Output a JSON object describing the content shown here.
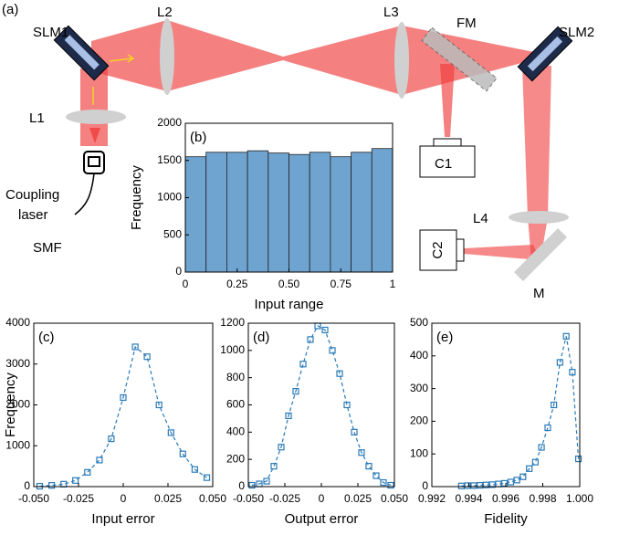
{
  "diagram": {
    "panel_label": "(a)",
    "labels": [
      "SLM1",
      "L2",
      "L3",
      "FM",
      "SLM2",
      "L1",
      "C1",
      "Coupling",
      "laser",
      "SMF",
      "L4",
      "C2",
      "M"
    ]
  },
  "chart_data": [
    {
      "type": "histogram",
      "panel_label": "(b)",
      "xlabel": "Input range",
      "ylabel": "Frequency",
      "color": "#6fa3d0",
      "bins": [
        0,
        0.1,
        0.2,
        0.3,
        0.4,
        0.5,
        0.6,
        0.7,
        0.8,
        0.9,
        1
      ],
      "values": [
        1550,
        1610,
        1610,
        1630,
        1600,
        1580,
        1610,
        1550,
        1610,
        1660
      ],
      "xlim": [
        0,
        1
      ],
      "ylim": [
        0,
        2000
      ],
      "xticks": [
        0,
        0.25,
        {
          "value": 0.5,
          "label": "0.50"
        },
        0.75,
        1
      ],
      "yticks": [
        0,
        500,
        1000,
        1500,
        2000
      ]
    },
    {
      "type": "line",
      "panel_label": "(c)",
      "xlabel": "Input error",
      "ylabel": "Frequency",
      "color": "#2a7ab8",
      "linestyle": "dashed",
      "marker": "square",
      "x": [
        -0.0467,
        -0.04,
        -0.0333,
        -0.0267,
        -0.02,
        -0.0133,
        -0.0067,
        0,
        0.0067,
        0.0133,
        0.02,
        0.0267,
        0.0333,
        0.04,
        0.0467
      ],
      "values": [
        10,
        30,
        60,
        150,
        350,
        650,
        1170,
        2180,
        3420,
        3180,
        2000,
        1320,
        800,
        420,
        220
      ],
      "xlim": [
        -0.05,
        0.05
      ],
      "ylim": [
        0,
        4000
      ],
      "xticks": [
        {
          "value": -0.05,
          "label": "-0.050"
        },
        -0.025,
        0,
        0.025,
        {
          "value": 0.05,
          "label": "0.050"
        }
      ],
      "yticks": [
        0,
        1000,
        2000,
        3000,
        4000
      ]
    },
    {
      "type": "line",
      "panel_label": "(d)",
      "xlabel": "Output error",
      "color": "#2a7ab8",
      "linestyle": "dashed",
      "marker": "square",
      "x": [
        -0.0475,
        -0.0425,
        -0.0375,
        -0.0325,
        -0.0275,
        -0.0225,
        -0.0175,
        -0.0125,
        -0.0075,
        -0.0025,
        0.0025,
        0.0075,
        0.0125,
        0.0175,
        0.0225,
        0.0275,
        0.0325,
        0.0375,
        0.0425,
        0.0475
      ],
      "values": [
        10,
        20,
        40,
        150,
        290,
        520,
        700,
        900,
        1080,
        1180,
        1150,
        1000,
        830,
        600,
        400,
        250,
        150,
        80,
        30,
        10
      ],
      "xlim": [
        -0.05,
        0.05
      ],
      "ylim": [
        0,
        1200
      ],
      "xticks": [
        {
          "value": -0.05,
          "label": "-0.050"
        },
        -0.025,
        0,
        0.025,
        {
          "value": 0.05,
          "label": "0.050"
        }
      ],
      "yticks": [
        0,
        200,
        400,
        600,
        800,
        1000,
        1200
      ]
    },
    {
      "type": "line",
      "panel_label": "(e)",
      "xlabel": "Fidelity",
      "color": "#2a7ab8",
      "linestyle": "dashed",
      "marker": "square",
      "x": [
        0.9936,
        0.99393,
        0.99427,
        0.9946,
        0.99493,
        0.99527,
        0.9956,
        0.99593,
        0.99627,
        0.9966,
        0.99693,
        0.99727,
        0.9976,
        0.99793,
        0.99827,
        0.9986,
        0.99893,
        0.99927,
        0.9996,
        0.99993
      ],
      "values": [
        2,
        3,
        3,
        4,
        5,
        6,
        8,
        10,
        14,
        20,
        30,
        55,
        75,
        120,
        180,
        250,
        380,
        460,
        350,
        85
      ],
      "xlim": [
        0.992,
        1.0
      ],
      "ylim": [
        0,
        500
      ],
      "xticks": [
        0.992,
        0.994,
        0.996,
        0.998,
        {
          "value": 1.0,
          "label": "1.000"
        }
      ],
      "yticks": [
        0,
        100,
        200,
        300,
        400,
        500
      ]
    }
  ]
}
